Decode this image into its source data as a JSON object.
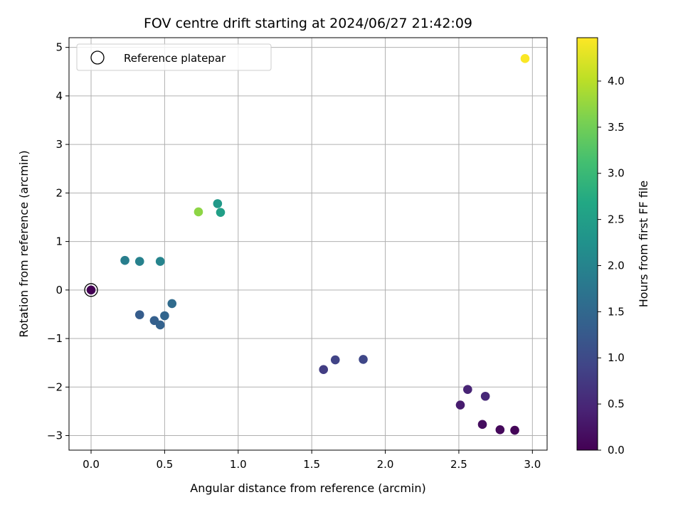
{
  "chart_data": {
    "type": "scatter",
    "title": "FOV centre drift starting at 2024/06/27 21:42:09",
    "xlabel": "Angular distance from reference (arcmin)",
    "ylabel": "Rotation from reference (arcmin)",
    "colorbar_label": "Hours from first FF file",
    "xlim": [
      -0.15,
      3.1
    ],
    "ylim": [
      -3.3,
      5.2
    ],
    "x_ticks": [
      0.0,
      0.5,
      1.0,
      1.5,
      2.0,
      2.5,
      3.0
    ],
    "x_tick_labels": [
      "0.0",
      "0.5",
      "1.0",
      "1.5",
      "2.0",
      "2.5",
      "3.0"
    ],
    "y_ticks": [
      -3,
      -2,
      -1,
      0,
      1,
      2,
      3,
      4,
      5
    ],
    "y_tick_labels": [
      "−3",
      "−2",
      "−1",
      "0",
      "1",
      "2",
      "3",
      "4",
      "5"
    ],
    "colorbar_range": [
      0.0,
      4.47
    ],
    "colorbar_ticks": [
      0.0,
      0.5,
      1.0,
      1.5,
      2.0,
      2.5,
      3.0,
      3.5,
      4.0
    ],
    "colorbar_tick_labels": [
      "0.0",
      "0.5",
      "1.0",
      "1.5",
      "2.0",
      "2.5",
      "3.0",
      "3.5",
      "4.0"
    ],
    "colormap": "viridis",
    "grid": true,
    "legend": {
      "position": "top-left",
      "label": "Reference platepar"
    },
    "reference_point": {
      "x": 0.0,
      "y": 0.0
    },
    "points": [
      {
        "x": 0.0,
        "y": 0.0,
        "hours": 0.0
      },
      {
        "x": 2.88,
        "y": -2.89,
        "hours": 0.05
      },
      {
        "x": 2.78,
        "y": -2.88,
        "hours": 0.1
      },
      {
        "x": 2.66,
        "y": -2.77,
        "hours": 0.15
      },
      {
        "x": 2.51,
        "y": -2.37,
        "hours": 0.35
      },
      {
        "x": 2.56,
        "y": -2.05,
        "hours": 0.45
      },
      {
        "x": 2.68,
        "y": -2.19,
        "hours": 0.5
      },
      {
        "x": 1.58,
        "y": -1.64,
        "hours": 0.8
      },
      {
        "x": 1.66,
        "y": -1.44,
        "hours": 0.9
      },
      {
        "x": 1.85,
        "y": -1.43,
        "hours": 0.95
      },
      {
        "x": 0.33,
        "y": -0.51,
        "hours": 1.3
      },
      {
        "x": 0.43,
        "y": -0.63,
        "hours": 1.35
      },
      {
        "x": 0.47,
        "y": -0.72,
        "hours": 1.4
      },
      {
        "x": 0.5,
        "y": -0.53,
        "hours": 1.45
      },
      {
        "x": 0.55,
        "y": -0.28,
        "hours": 1.55
      },
      {
        "x": 0.23,
        "y": 0.61,
        "hours": 1.9
      },
      {
        "x": 0.33,
        "y": 0.59,
        "hours": 1.95
      },
      {
        "x": 0.47,
        "y": 0.59,
        "hours": 2.0
      },
      {
        "x": 0.86,
        "y": 1.78,
        "hours": 2.4
      },
      {
        "x": 0.88,
        "y": 1.6,
        "hours": 2.5
      },
      {
        "x": 0.73,
        "y": 1.61,
        "hours": 3.7
      },
      {
        "x": 2.95,
        "y": 4.77,
        "hours": 4.45
      }
    ]
  }
}
